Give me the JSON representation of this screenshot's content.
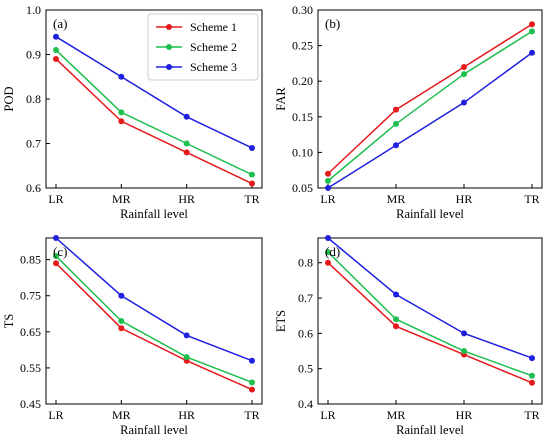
{
  "colors": {
    "scheme1": "#e41a1c",
    "scheme2": "#1fbf4f",
    "scheme3": "#1f1fe0"
  },
  "legend": {
    "placement": "top-right of panel (a)",
    "entries": [
      "Scheme 1",
      "Scheme 2",
      "Scheme 3"
    ]
  },
  "chart_data": [
    {
      "type": "line",
      "panel_label": "(a)",
      "categories": [
        "LR",
        "MR",
        "HR",
        "TR"
      ],
      "xlabel": "Rainfall level",
      "ylabel": "POD",
      "ylim": [
        0.6,
        1.0
      ],
      "yticks": [
        "0.6",
        "0.7",
        "0.8",
        "0.9",
        "1.0"
      ],
      "yticks_values": [
        0.6,
        0.7,
        0.8,
        0.9,
        1.0
      ],
      "series": [
        {
          "name": "Scheme 1",
          "color_key": "scheme1",
          "values": [
            0.89,
            0.75,
            0.68,
            0.61
          ]
        },
        {
          "name": "Scheme 2",
          "color_key": "scheme2",
          "values": [
            0.91,
            0.77,
            0.7,
            0.63
          ]
        },
        {
          "name": "Scheme 3",
          "color_key": "scheme3",
          "values": [
            0.94,
            0.85,
            0.76,
            0.69
          ]
        }
      ]
    },
    {
      "type": "line",
      "panel_label": "(b)",
      "categories": [
        "LR",
        "MR",
        "HR",
        "TR"
      ],
      "xlabel": "Rainfall level",
      "ylabel": "FAR",
      "ylim": [
        0.05,
        0.3
      ],
      "yticks": [
        "0.05",
        "0.10",
        "0.15",
        "0.20",
        "0.25",
        "0.30"
      ],
      "yticks_values": [
        0.05,
        0.1,
        0.15,
        0.2,
        0.25,
        0.3
      ],
      "series": [
        {
          "name": "Scheme 1",
          "color_key": "scheme1",
          "values": [
            0.07,
            0.16,
            0.22,
            0.28
          ]
        },
        {
          "name": "Scheme 2",
          "color_key": "scheme2",
          "values": [
            0.06,
            0.14,
            0.21,
            0.27
          ]
        },
        {
          "name": "Scheme 3",
          "color_key": "scheme3",
          "values": [
            0.05,
            0.11,
            0.17,
            0.24
          ]
        }
      ]
    },
    {
      "type": "line",
      "panel_label": "(c)",
      "categories": [
        "LR",
        "MR",
        "HR",
        "TR"
      ],
      "xlabel": "Rainfall level",
      "ylabel": "TS",
      "ylim": [
        0.45,
        0.91
      ],
      "yticks": [
        "0.45",
        "0.55",
        "0.65",
        "0.75",
        "0.85"
      ],
      "yticks_values": [
        0.45,
        0.55,
        0.65,
        0.75,
        0.85
      ],
      "series": [
        {
          "name": "Scheme 1",
          "color_key": "scheme1",
          "values": [
            0.84,
            0.66,
            0.57,
            0.49
          ]
        },
        {
          "name": "Scheme 2",
          "color_key": "scheme2",
          "values": [
            0.86,
            0.68,
            0.58,
            0.51
          ]
        },
        {
          "name": "Scheme 3",
          "color_key": "scheme3",
          "values": [
            0.91,
            0.75,
            0.64,
            0.57
          ]
        }
      ]
    },
    {
      "type": "line",
      "panel_label": "(d)",
      "categories": [
        "LR",
        "MR",
        "HR",
        "TR"
      ],
      "xlabel": "Rainfall level",
      "ylabel": "ETS",
      "ylim": [
        0.4,
        0.87
      ],
      "yticks": [
        "0.4",
        "0.5",
        "0.6",
        "0.7",
        "0.8"
      ],
      "yticks_values": [
        0.4,
        0.5,
        0.6,
        0.7,
        0.8
      ],
      "series": [
        {
          "name": "Scheme 1",
          "color_key": "scheme1",
          "values": [
            0.8,
            0.62,
            0.54,
            0.46
          ]
        },
        {
          "name": "Scheme 2",
          "color_key": "scheme2",
          "values": [
            0.83,
            0.64,
            0.55,
            0.48
          ]
        },
        {
          "name": "Scheme 3",
          "color_key": "scheme3",
          "values": [
            0.87,
            0.71,
            0.6,
            0.53
          ]
        }
      ]
    }
  ]
}
